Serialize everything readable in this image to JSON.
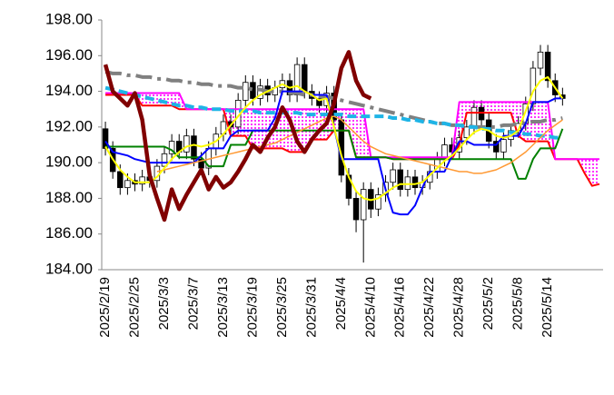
{
  "chart_data": {
    "type": "candlestick",
    "categories": [
      "2025/2/19",
      null,
      null,
      null,
      "2025/2/25",
      null,
      null,
      null,
      "2025/3/3",
      null,
      null,
      null,
      "2025/3/7",
      null,
      null,
      null,
      "2025/3/13",
      null,
      null,
      null,
      "2025/3/19",
      null,
      null,
      null,
      "2025/3/25",
      null,
      null,
      null,
      "2025/3/31",
      null,
      null,
      null,
      "2025/4/4",
      null,
      null,
      null,
      "2025/4/10",
      null,
      null,
      null,
      "2025/4/16",
      null,
      null,
      null,
      "2025/4/22",
      null,
      null,
      null,
      "2025/4/28",
      null,
      null,
      null,
      "2025/5/2",
      null,
      null,
      null,
      "2025/5/8",
      null,
      null,
      null,
      "2025/5/14",
      null,
      null,
      null,
      null,
      null,
      null,
      null
    ],
    "candles": {
      "up_color": "#ffffff",
      "down_color": "#000000",
      "open": [
        191.9,
        190.8,
        189.5,
        188.6,
        189.0,
        188.8,
        189.2,
        189.0,
        189.8,
        190.5,
        191.2,
        190.6,
        191.5,
        190.2,
        189.7,
        190.8,
        191.6,
        192.3,
        192.0,
        193.5,
        194.5,
        193.6,
        194.3,
        193.8,
        194.2,
        194.6,
        193.8,
        195.5,
        194.0,
        193.6,
        193.2,
        193.9,
        192.4,
        189.3,
        188.0,
        186.8,
        188.5,
        187.4,
        188.2,
        188.9,
        189.6,
        188.5,
        189.2,
        188.6,
        188.9,
        189.5,
        190.2,
        191.0,
        190.6,
        191.4,
        192.0,
        193.1,
        192.4,
        191.2,
        190.6,
        191.3,
        191.8,
        192.2,
        193.3,
        195.3,
        196.2,
        194.6,
        193.8
      ],
      "high": [
        192.3,
        191.2,
        189.9,
        189.4,
        189.4,
        189.6,
        189.6,
        190.2,
        190.9,
        191.6,
        191.6,
        191.9,
        191.9,
        190.6,
        191.2,
        192.0,
        192.7,
        192.7,
        193.9,
        194.9,
        194.9,
        194.7,
        194.7,
        194.6,
        195.0,
        195.0,
        195.9,
        195.9,
        194.4,
        194.0,
        194.3,
        194.3,
        192.8,
        189.7,
        188.4,
        188.9,
        188.9,
        188.6,
        189.3,
        190.0,
        190.0,
        189.6,
        189.6,
        189.3,
        189.9,
        190.6,
        191.4,
        191.4,
        191.8,
        192.4,
        193.5,
        193.5,
        192.8,
        191.6,
        191.7,
        192.2,
        192.6,
        193.7,
        195.7,
        196.6,
        196.6,
        195.0,
        194.2
      ],
      "low": [
        190.4,
        189.1,
        188.2,
        188.2,
        188.4,
        188.4,
        188.6,
        188.6,
        189.4,
        190.1,
        190.2,
        190.2,
        189.8,
        189.3,
        189.3,
        190.4,
        191.2,
        191.6,
        191.6,
        193.1,
        193.2,
        193.2,
        193.4,
        193.4,
        193.8,
        193.4,
        193.4,
        193.6,
        193.2,
        192.8,
        192.8,
        192.0,
        188.9,
        187.6,
        186.1,
        184.4,
        186.9,
        187.0,
        187.8,
        188.5,
        188.1,
        188.1,
        188.2,
        188.2,
        188.5,
        189.1,
        189.8,
        190.2,
        190.2,
        191.0,
        191.6,
        192.0,
        190.8,
        190.2,
        190.2,
        190.9,
        191.4,
        191.8,
        192.9,
        194.9,
        194.2,
        193.4,
        193.2
      ],
      "close": [
        190.8,
        189.5,
        188.6,
        189.0,
        188.8,
        189.2,
        189.0,
        189.8,
        190.5,
        191.2,
        190.6,
        191.5,
        190.2,
        189.7,
        190.8,
        191.6,
        192.3,
        192.0,
        193.5,
        194.5,
        193.6,
        194.3,
        193.8,
        194.2,
        194.6,
        193.8,
        195.5,
        194.0,
        193.6,
        193.2,
        193.9,
        192.4,
        189.3,
        188.0,
        186.8,
        188.5,
        187.4,
        188.2,
        188.9,
        189.6,
        188.5,
        189.2,
        188.6,
        188.9,
        189.5,
        190.2,
        191.0,
        190.6,
        191.4,
        192.0,
        193.1,
        192.4,
        191.2,
        190.6,
        191.3,
        191.8,
        192.2,
        193.3,
        195.3,
        196.2,
        194.6,
        193.8,
        193.6
      ]
    },
    "ichimoku_cloud": {
      "fill": "#ff00ff",
      "lines": [
        {
          "color": "#ff0000",
          "style": "solid",
          "values": [
            193.8,
            193.8,
            193.8,
            193.8,
            193.8,
            193.2,
            193.2,
            193.2,
            193.2,
            193.2,
            193.0,
            193.0,
            193.0,
            193.0,
            193.0,
            193.0,
            193.0,
            191.5,
            191.5,
            191.5,
            190.8,
            190.8,
            190.8,
            190.8,
            190.8,
            190.6,
            190.6,
            190.6,
            191.3,
            191.3,
            191.3,
            191.8,
            191.8,
            191.8,
            190.3,
            190.3,
            190.3,
            190.3,
            190.3,
            190.2,
            190.2,
            190.2,
            190.2,
            190.2,
            190.2,
            190.2,
            190.2,
            190.2,
            191.0,
            192.8,
            192.8,
            192.8,
            192.8,
            192.8,
            192.8,
            192.8,
            191.5,
            191.2,
            191.2,
            191.2,
            191.2,
            190.2,
            190.2,
            190.2,
            190.2,
            189.4,
            188.7,
            188.8
          ]
        },
        {
          "color": "#ff00ff",
          "style": "solid",
          "values": [
            193.9,
            193.9,
            193.9,
            193.9,
            193.9,
            193.9,
            193.9,
            193.9,
            193.9,
            193.9,
            193.9,
            193.0,
            193.0,
            193.0,
            193.0,
            193.0,
            193.0,
            193.0,
            193.0,
            193.0,
            193.0,
            193.0,
            193.0,
            193.0,
            193.0,
            193.0,
            193.0,
            193.0,
            193.0,
            193.0,
            193.0,
            193.0,
            193.0,
            193.0,
            193.0,
            193.0,
            190.3,
            190.3,
            190.3,
            190.3,
            190.3,
            190.3,
            190.3,
            190.3,
            190.3,
            190.3,
            190.3,
            190.3,
            193.4,
            193.4,
            193.4,
            193.4,
            193.4,
            193.4,
            193.4,
            193.4,
            193.4,
            193.4,
            193.4,
            193.4,
            193.4,
            190.2,
            190.2,
            190.2,
            190.2,
            190.2,
            190.2,
            190.2
          ]
        }
      ]
    },
    "series": [
      {
        "color": "#808080",
        "style": "dash-dot",
        "values": [
          195.1,
          195.0,
          195.0,
          194.9,
          194.9,
          194.8,
          194.8,
          194.7,
          194.7,
          194.6,
          194.6,
          194.5,
          194.5,
          194.4,
          194.4,
          194.3,
          194.3,
          194.3,
          194.2,
          194.2,
          194.1,
          194.1,
          194.0,
          194.0,
          194.0,
          193.9,
          193.9,
          193.8,
          193.8,
          193.7,
          193.7,
          193.6,
          193.5,
          193.4,
          193.3,
          193.2,
          193.1,
          193.0,
          192.9,
          192.8,
          192.7,
          192.6,
          192.5,
          192.4,
          192.3,
          192.2,
          192.2,
          192.1,
          192.1,
          192.1,
          192.0,
          192.0,
          192.0,
          192.0,
          192.1,
          192.1,
          192.2,
          192.2,
          192.3,
          192.3,
          192.4,
          192.4,
          192.5,
          null,
          null,
          null,
          null,
          null
        ]
      },
      {
        "color": "#1eb4e6",
        "style": "dashed",
        "values": [
          194.2,
          194.1,
          194.0,
          193.9,
          193.8,
          193.7,
          193.6,
          193.5,
          193.4,
          193.3,
          193.2,
          193.2,
          193.1,
          193.1,
          193.0,
          193.0,
          193.0,
          192.9,
          192.9,
          192.9,
          192.9,
          192.8,
          192.8,
          192.8,
          192.8,
          192.8,
          192.8,
          192.7,
          192.7,
          192.7,
          192.7,
          192.7,
          192.7,
          192.6,
          192.6,
          192.6,
          192.6,
          192.6,
          192.6,
          192.5,
          192.5,
          192.4,
          192.4,
          192.3,
          192.3,
          192.2,
          192.2,
          192.1,
          192.1,
          192.0,
          192.0,
          191.9,
          191.9,
          191.8,
          191.8,
          191.7,
          191.7,
          191.6,
          191.6,
          191.5,
          191.5,
          191.4,
          191.4,
          null,
          null,
          null,
          null,
          null
        ]
      },
      {
        "color": "#008000",
        "style": "solid",
        "values": [
          190.9,
          190.9,
          190.9,
          190.9,
          190.9,
          190.9,
          190.9,
          190.9,
          190.9,
          190.7,
          190.3,
          190.3,
          190.3,
          190.3,
          189.8,
          189.8,
          189.8,
          191.0,
          191.0,
          191.0,
          191.8,
          191.8,
          191.8,
          191.8,
          191.8,
          191.8,
          191.8,
          191.8,
          191.8,
          191.8,
          191.8,
          191.8,
          191.8,
          191.8,
          190.3,
          190.3,
          190.3,
          190.3,
          190.3,
          190.2,
          190.2,
          190.2,
          190.2,
          190.2,
          190.2,
          190.2,
          190.2,
          190.2,
          190.2,
          190.2,
          190.2,
          190.2,
          190.2,
          190.2,
          190.2,
          190.2,
          189.1,
          189.1,
          190.2,
          190.8,
          190.8,
          190.8,
          191.9,
          null,
          null,
          null,
          null,
          null
        ]
      },
      {
        "color": "#0000ff",
        "style": "solid",
        "values": [
          191.2,
          190.6,
          190.5,
          190.4,
          190.2,
          190.1,
          190.0,
          190.0,
          190.0,
          190.0,
          190.0,
          190.0,
          190.0,
          190.4,
          190.8,
          190.8,
          190.8,
          191.5,
          191.8,
          191.8,
          191.8,
          191.8,
          191.8,
          192.5,
          194.0,
          194.0,
          194.0,
          194.0,
          193.8,
          193.8,
          193.8,
          192.0,
          190.2,
          190.2,
          190.2,
          190.2,
          190.2,
          190.2,
          188.5,
          187.2,
          187.1,
          187.1,
          187.6,
          188.6,
          189.5,
          189.5,
          189.5,
          190.4,
          191.2,
          191.2,
          191.0,
          191.0,
          191.0,
          191.0,
          191.5,
          191.5,
          191.5,
          192.2,
          193.4,
          193.4,
          193.4,
          193.6,
          193.6,
          null,
          null,
          null,
          null,
          null
        ]
      },
      {
        "color": "#ff9933",
        "style": "thin",
        "values": [
          null,
          null,
          null,
          null,
          null,
          null,
          null,
          189.5,
          189.6,
          189.7,
          189.8,
          189.9,
          190.0,
          190.1,
          190.2,
          190.3,
          190.4,
          190.5,
          190.6,
          190.7,
          190.8,
          190.9,
          191.0,
          191.1,
          191.3,
          191.5,
          191.7,
          191.9,
          192.1,
          192.3,
          192.5,
          192.6,
          192.4,
          192.0,
          191.6,
          191.2,
          190.9,
          190.7,
          190.5,
          190.4,
          190.3,
          190.2,
          190.1,
          190.0,
          189.9,
          189.8,
          189.7,
          189.6,
          189.5,
          189.5,
          189.4,
          189.4,
          189.5,
          189.6,
          189.8,
          190.0,
          190.3,
          190.6,
          191.0,
          191.4,
          191.8,
          192.1,
          192.4,
          null,
          null,
          null,
          null,
          null
        ]
      },
      {
        "color": "#ffff00",
        "style": "solid",
        "values": [
          190.9,
          190.2,
          189.6,
          189.2,
          188.9,
          188.9,
          188.9,
          189.2,
          189.7,
          190.2,
          190.6,
          190.9,
          191.0,
          190.9,
          191.0,
          191.2,
          191.6,
          192.1,
          192.6,
          193.1,
          193.5,
          193.8,
          194.0,
          194.2,
          194.4,
          194.2,
          194.3,
          194.0,
          193.8,
          193.5,
          193.6,
          192.0,
          190.4,
          189.2,
          188.4,
          188.0,
          187.9,
          188.0,
          188.3,
          188.6,
          188.8,
          188.8,
          188.8,
          188.9,
          189.3,
          189.7,
          190.1,
          190.4,
          190.8,
          191.3,
          191.7,
          191.9,
          191.8,
          191.5,
          191.4,
          191.5,
          191.8,
          192.9,
          194.0,
          194.6,
          194.8,
          194.2,
          193.6,
          null,
          null,
          null,
          null,
          null
        ]
      },
      {
        "color": "#800000",
        "style": "thick",
        "values": [
          195.5,
          194.0,
          193.6,
          193.2,
          193.9,
          192.4,
          189.3,
          188.0,
          186.8,
          188.5,
          187.4,
          188.2,
          188.9,
          189.6,
          188.5,
          189.2,
          188.6,
          188.9,
          189.5,
          190.2,
          191.0,
          190.6,
          191.4,
          192.0,
          193.1,
          192.4,
          191.2,
          190.6,
          191.3,
          191.8,
          192.2,
          193.3,
          195.3,
          196.2,
          194.6,
          193.8,
          193.6,
          null,
          null,
          null,
          null,
          null,
          null,
          null,
          null,
          null,
          null,
          null,
          null,
          null,
          null,
          null,
          null,
          null,
          null,
          null,
          null,
          null,
          null,
          null,
          null,
          null,
          null,
          null,
          null,
          null,
          null,
          null
        ]
      }
    ],
    "ylim": [
      184,
      198
    ],
    "yticks": [
      {
        "value": 184,
        "label": "184.00"
      },
      {
        "value": 186,
        "label": "186.00"
      },
      {
        "value": 188,
        "label": "188.00"
      },
      {
        "value": 190,
        "label": "190.00"
      },
      {
        "value": 192,
        "label": "192.00"
      },
      {
        "value": 194,
        "label": "194.00"
      },
      {
        "value": 196,
        "label": "196.00"
      },
      {
        "value": 198,
        "label": "198.00"
      }
    ],
    "grid": false
  }
}
